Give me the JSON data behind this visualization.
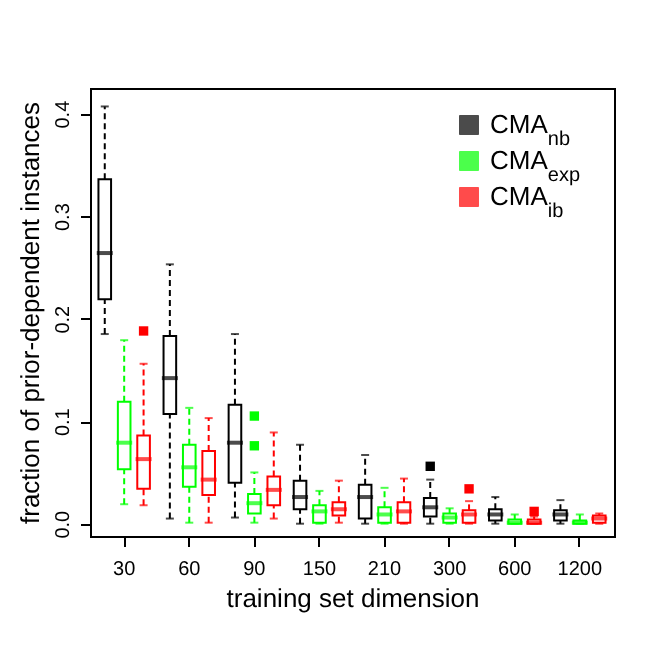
{
  "chart_data": {
    "type": "box",
    "xlabel": "training set dimension",
    "ylabel": "fraction of prior-dependent instances",
    "categories": [
      "30",
      "60",
      "90",
      "150",
      "210",
      "300",
      "600",
      "1200"
    ],
    "ylim": [
      -0.012,
      0.425
    ],
    "yticks": [
      {
        "value": 0,
        "label": "0.0"
      },
      {
        "value": 0.1,
        "label": "0.1"
      },
      {
        "value": 0.2,
        "label": "0.2"
      },
      {
        "value": 0.3,
        "label": "0.3"
      },
      {
        "value": 0.4,
        "label": "0.4"
      }
    ],
    "grid": false,
    "legend": "top right",
    "line_style": "dashed",
    "series": [
      {
        "name": "CMA$_{nb}$",
        "color": "#000000",
        "boxes": [
          {
            "low": 0.185,
            "q1": 0.219,
            "median": 0.264,
            "q3": 0.336,
            "high": 0.407
          },
          {
            "low": 0.005,
            "q1": 0.107,
            "median": 0.142,
            "q3": 0.183,
            "high": 0.253
          },
          {
            "low": 0.006,
            "q1": 0.04,
            "median": 0.079,
            "q3": 0.116,
            "high": 0.185
          },
          {
            "low": 0,
            "q1": 0.014,
            "median": 0.026,
            "q3": 0.042,
            "high": 0.077
          },
          {
            "low": 0,
            "q1": 0.005,
            "median": 0.026,
            "q3": 0.038,
            "high": 0.067
          },
          {
            "low": 0,
            "q1": 0.007,
            "median": 0.016,
            "q3": 0.025,
            "high": 0.043,
            "outliers": [
              0.056
            ]
          },
          {
            "low": 0,
            "q1": 0.003,
            "median": 0.009,
            "q3": 0.014,
            "high": 0.026
          },
          {
            "low": 0,
            "q1": 0.003,
            "median": 0.009,
            "q3": 0.013,
            "high": 0.023
          }
        ]
      },
      {
        "name": "CMA$_{exp}$",
        "color": "#00ff00",
        "boxes": [
          {
            "low": 0.019,
            "q1": 0.053,
            "median": 0.079,
            "q3": 0.119,
            "high": 0.179
          },
          {
            "low": 0.001,
            "q1": 0.036,
            "median": 0.055,
            "q3": 0.077,
            "high": 0.113
          },
          {
            "low": 0.001,
            "q1": 0.01,
            "median": 0.02,
            "q3": 0.029,
            "high": 0.05,
            "outliers": [
              0.076,
              0.105
            ]
          },
          {
            "low": 0,
            "q1": 0.001,
            "median": 0.012,
            "q3": 0.018,
            "high": 0.032
          },
          {
            "low": 0,
            "q1": 0.001,
            "median": 0.009,
            "q3": 0.016,
            "high": 0.035
          },
          {
            "low": 0,
            "q1": 0.001,
            "median": 0.006,
            "q3": 0.01,
            "high": 0.015
          },
          {
            "low": 0,
            "q1": 0,
            "median": 0.001,
            "q3": 0.004,
            "high": 0.009
          },
          {
            "low": 0,
            "q1": 0,
            "median": 0.001,
            "q3": 0.003,
            "high": 0.009
          }
        ]
      },
      {
        "name": "CMA$_{ib}$",
        "color": "#ff0000",
        "boxes": [
          {
            "low": 0.018,
            "q1": 0.034,
            "median": 0.063,
            "q3": 0.086,
            "high": 0.156,
            "outliers": [
              0.188
            ]
          },
          {
            "low": 0.001,
            "q1": 0.028,
            "median": 0.043,
            "q3": 0.071,
            "high": 0.103
          },
          {
            "low": 0.005,
            "q1": 0.018,
            "median": 0.033,
            "q3": 0.046,
            "high": 0.089
          },
          {
            "low": 0.001,
            "q1": 0.008,
            "median": 0.014,
            "q3": 0.021,
            "high": 0.042
          },
          {
            "low": 0,
            "q1": 0.001,
            "median": 0.012,
            "q3": 0.021,
            "high": 0.044
          },
          {
            "low": 0,
            "q1": 0.001,
            "median": 0.009,
            "q3": 0.013,
            "high": 0.022,
            "outliers": [
              0.034
            ]
          },
          {
            "low": 0,
            "q1": 0,
            "median": 0.001,
            "q3": 0.004,
            "high": 0.007,
            "outliers": [
              0.012
            ]
          },
          {
            "low": 0,
            "q1": 0.001,
            "median": 0.005,
            "q3": 0.008,
            "high": 0.01
          }
        ]
      }
    ]
  }
}
